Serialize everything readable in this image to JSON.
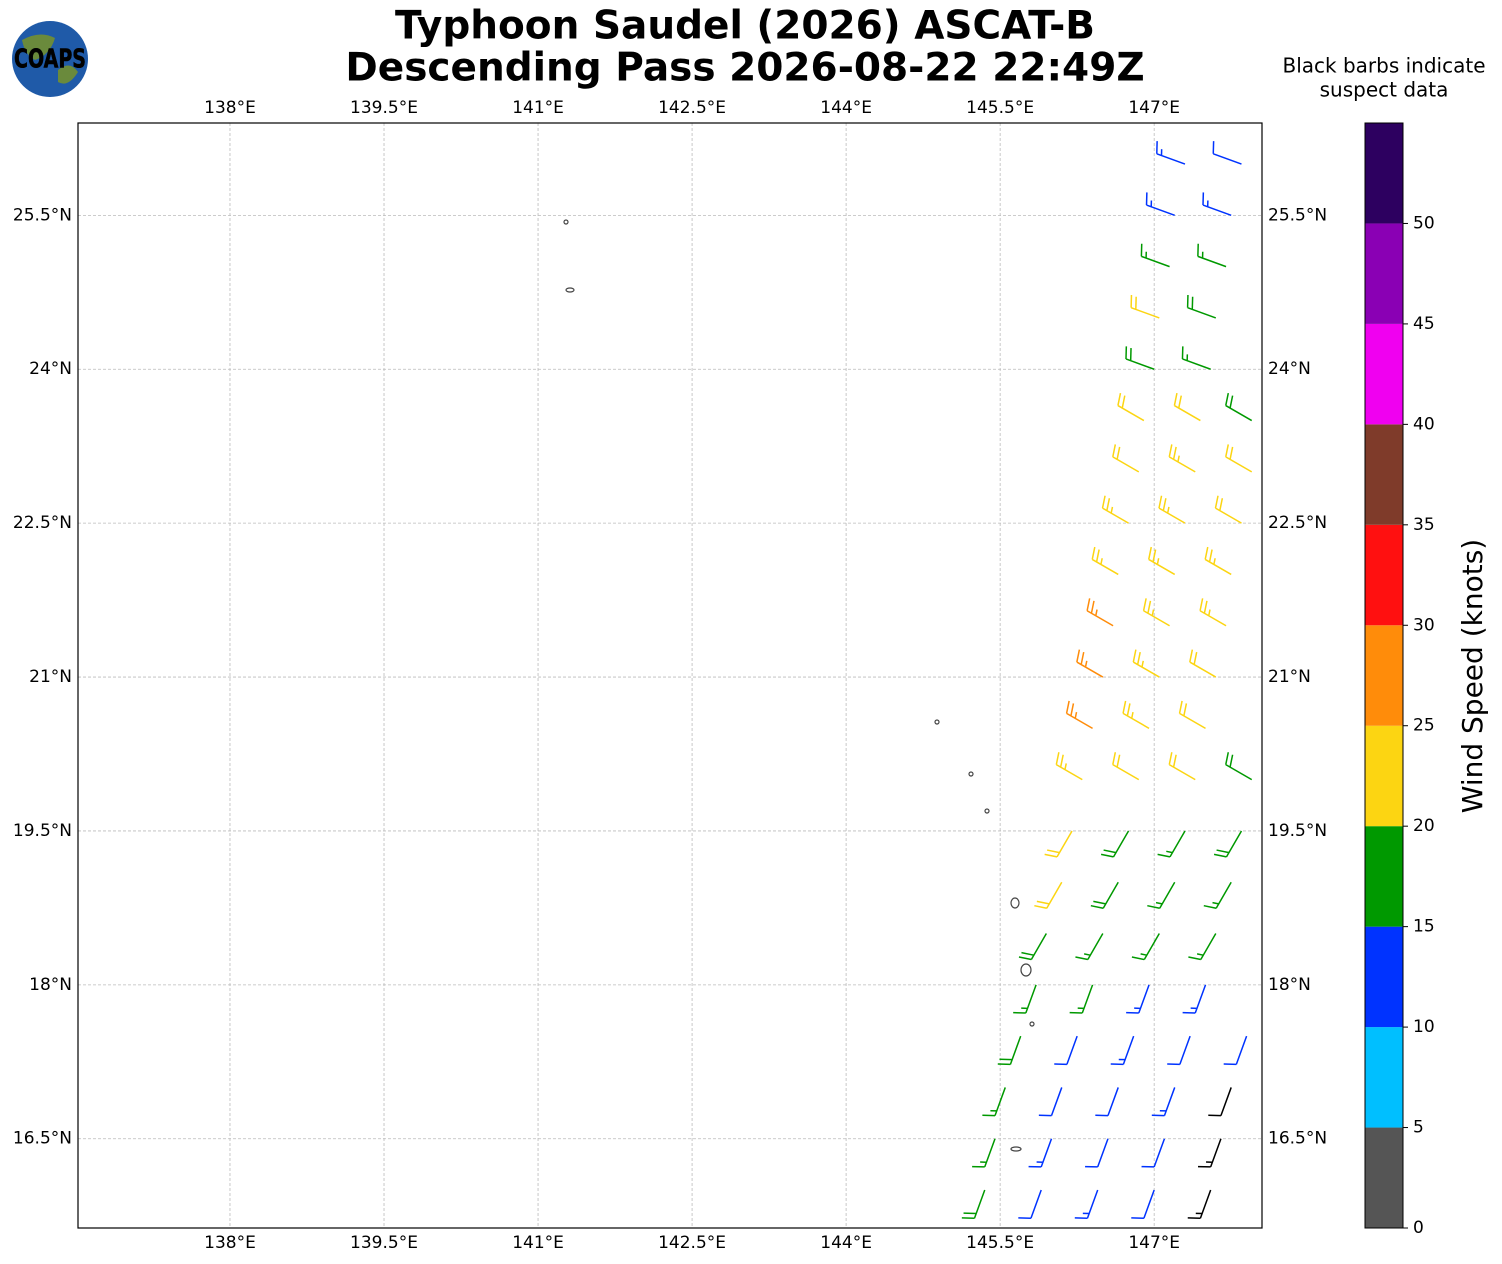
{
  "logo_text": "COAPS",
  "chart_data": {
    "type": "barbs",
    "title": [
      "Typhoon Saudel (2026) ASCAT-B",
      "Descending Pass 2026-08-22 22:49Z"
    ],
    "note": [
      "Black barbs indicate",
      "suspect data"
    ],
    "xlim": [
      136.52,
      148.05
    ],
    "ylim": [
      15.63,
      26.4
    ],
    "grid": true,
    "xticks": [
      {
        "value": 138,
        "label": "138°E"
      },
      {
        "value": 139.5,
        "label": "139.5°E"
      },
      {
        "value": 141,
        "label": "141°E"
      },
      {
        "value": 142.5,
        "label": "142.5°E"
      },
      {
        "value": 144,
        "label": "144°E"
      },
      {
        "value": 145.5,
        "label": "145.5°E"
      },
      {
        "value": 147,
        "label": "147°E"
      }
    ],
    "yticks": [
      {
        "value": 16.5,
        "label": "16.5°N"
      },
      {
        "value": 18,
        "label": "18°N"
      },
      {
        "value": 19.5,
        "label": "19.5°N"
      },
      {
        "value": 21,
        "label": "21°N"
      },
      {
        "value": 22.5,
        "label": "22.5°N"
      },
      {
        "value": 24,
        "label": "24°N"
      },
      {
        "value": 25.5,
        "label": "25.5°N"
      }
    ],
    "suspect_color": "#000000",
    "barbs": {
      "lon": [
        145.35,
        145.9,
        146.45,
        147.0,
        147.55,
        145.45,
        146.0,
        146.55,
        147.1,
        147.65,
        145.55,
        146.1,
        146.65,
        147.2,
        147.75,
        145.7,
        146.25,
        146.8,
        147.35,
        147.9,
        145.85,
        146.4,
        146.95,
        147.5,
        145.95,
        146.5,
        147.05,
        147.6,
        146.1,
        146.65,
        147.2,
        147.75,
        146.2,
        146.75,
        147.3,
        147.85,
        146.3,
        146.85,
        147.4,
        147.95,
        146.4,
        146.95,
        147.5,
        146.5,
        147.05,
        147.6,
        146.6,
        147.15,
        147.7,
        146.65,
        147.2,
        147.75,
        146.75,
        147.3,
        147.85,
        146.85,
        147.4,
        147.95,
        146.9,
        147.45,
        147.95,
        147.0,
        147.55,
        147.05,
        147.6,
        147.15,
        147.7,
        147.2,
        147.75,
        147.3,
        147.85
      ],
      "lat": [
        16,
        16,
        16,
        16,
        16,
        16.5,
        16.5,
        16.5,
        16.5,
        16.5,
        17,
        17,
        17,
        17,
        17,
        17.5,
        17.5,
        17.5,
        17.5,
        17.5,
        18,
        18,
        18,
        18,
        18.5,
        18.5,
        18.5,
        18.5,
        19,
        19,
        19,
        19,
        19.5,
        19.5,
        19.5,
        19.5,
        20,
        20,
        20,
        20,
        20.5,
        20.5,
        20.5,
        21,
        21,
        21,
        21.5,
        21.5,
        21.5,
        22,
        22,
        22,
        22.5,
        22.5,
        22.5,
        23,
        23,
        23,
        23.5,
        23.5,
        23.5,
        24,
        24,
        24.5,
        24.5,
        25,
        25,
        25.5,
        25.5,
        26,
        26
      ],
      "speed": [
        18,
        12,
        13,
        11,
        14,
        17,
        13,
        12,
        12,
        13,
        17,
        12,
        11,
        13,
        12,
        18,
        12,
        14,
        12,
        11,
        17,
        16,
        13,
        14,
        19,
        17,
        16,
        17,
        21,
        18,
        17,
        16,
        22,
        19,
        17,
        18,
        23,
        21,
        21,
        18,
        26,
        23,
        22,
        27,
        24,
        22,
        26,
        24,
        23,
        24,
        24,
        23,
        23,
        24,
        22,
        22,
        23,
        21,
        21,
        22,
        18,
        18,
        17,
        21,
        18,
        17,
        16,
        14,
        13,
        13,
        12
      ],
      "direction": [
        200,
        200,
        200,
        200,
        200,
        200,
        200,
        200,
        200,
        200,
        200,
        200,
        200,
        200,
        200,
        200,
        200,
        200,
        200,
        200,
        200,
        200,
        200,
        200,
        210,
        210,
        210,
        210,
        210,
        210,
        210,
        210,
        210,
        210,
        210,
        210,
        300,
        300,
        300,
        300,
        300,
        300,
        300,
        300,
        300,
        300,
        300,
        300,
        300,
        300,
        300,
        300,
        300,
        300,
        300,
        300,
        300,
        300,
        300,
        300,
        300,
        290,
        290,
        290,
        290,
        290,
        290,
        290,
        290,
        290,
        290
      ],
      "suspect": [
        false,
        false,
        false,
        false,
        true,
        false,
        false,
        false,
        false,
        true,
        false,
        false,
        false,
        false,
        true,
        false,
        false,
        false,
        false,
        false,
        false,
        false,
        false,
        false,
        false,
        false,
        false,
        false,
        false,
        false,
        false,
        false,
        false,
        false,
        false,
        false,
        false,
        false,
        false,
        false,
        false,
        false,
        false,
        false,
        false,
        false,
        false,
        false,
        false,
        false,
        false,
        false,
        false,
        false,
        false,
        false,
        false,
        false,
        false,
        false,
        false,
        false,
        false,
        false,
        false,
        false,
        false,
        false,
        false,
        false,
        false
      ]
    },
    "colorbar": {
      "label": "Wind Speed (knots)",
      "lim": [
        0,
        55
      ],
      "ticks": [
        0,
        5,
        10,
        15,
        20,
        25,
        30,
        35,
        40,
        45,
        50
      ],
      "colors": [
        "#555555",
        "#00bfff",
        "#0033ff",
        "#009900",
        "#fcd512",
        "#ff8c0a",
        "#ff1010",
        "#7f3b2a",
        "#f000f0",
        "#8a00b4",
        "#2d0060"
      ]
    }
  }
}
